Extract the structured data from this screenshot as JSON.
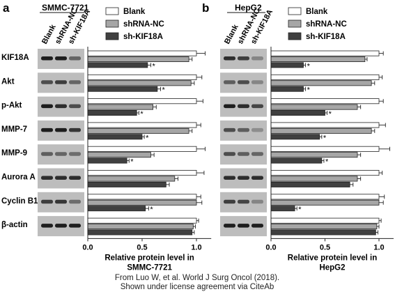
{
  "figure": {
    "caption_line1": "From Luo W, et al. World J Surg Oncol (2018).",
    "caption_line2": "Shown under license agreement via CiteAb"
  },
  "legend": {
    "entries": [
      {
        "label": "Blank",
        "color": "#ffffff"
      },
      {
        "label": "shRNA-NC",
        "color": "#a6a6a6"
      },
      {
        "label": "sh-KIF18A",
        "color": "#404040"
      }
    ]
  },
  "lane_labels": [
    "Blank",
    "shRNA-NC",
    "sh-KIF18A"
  ],
  "protein_labels": [
    "KIF18A",
    "Akt",
    "p-Akt",
    "MMP-7",
    "MMP-9",
    "Aurora A",
    "Cyclin B1",
    "β-actin"
  ],
  "colors": {
    "blank": "#ffffff",
    "nc": "#a6a6a6",
    "kd": "#404040",
    "blot_bg": "#bdbdbd",
    "band": "#1e1e1e"
  },
  "chart_data": [
    {
      "type": "bar",
      "orientation": "horizontal",
      "panel_letter": "a",
      "cell_line": "SMMC-7721",
      "xlabel_line1": "Relative protein level in",
      "xlabel_line2": "SMMC-7721",
      "xlim": [
        0,
        1.2
      ],
      "xticks": [
        "0.0",
        "0.5",
        "1.0"
      ],
      "categories": [
        "KIF18A",
        "Akt",
        "p-Akt",
        "MMP-7",
        "MMP-9",
        "Aurora A",
        "Cyclin B1",
        "β-actin"
      ],
      "series": [
        {
          "name": "Blank",
          "values": [
            1.0,
            1.0,
            1.0,
            1.0,
            1.0,
            1.0,
            1.0,
            1.0
          ],
          "errors": [
            0.08,
            0.05,
            0.06,
            0.04,
            0.08,
            0.07,
            0.04,
            0.02
          ]
        },
        {
          "name": "shRNA-NC",
          "values": [
            0.93,
            0.95,
            0.6,
            0.93,
            0.58,
            0.8,
            1.0,
            0.97
          ],
          "errors": [
            0.03,
            0.03,
            0.03,
            0.03,
            0.03,
            0.03,
            0.05,
            0.02
          ]
        },
        {
          "name": "sh-KIF18A",
          "values": [
            0.55,
            0.64,
            0.45,
            0.5,
            0.36,
            0.72,
            0.53,
            0.96
          ],
          "errors": [
            0.03,
            0.03,
            0.02,
            0.02,
            0.02,
            0.03,
            0.03,
            0.02
          ]
        }
      ],
      "significance": [
        "*",
        "*",
        "*",
        "*",
        "*",
        "",
        "*",
        ""
      ]
    },
    {
      "type": "bar",
      "orientation": "horizontal",
      "panel_letter": "b",
      "cell_line": "HepG2",
      "xlabel_line1": "Relative protein level in",
      "xlabel_line2": "HepG2",
      "xlim": [
        0,
        1.2
      ],
      "xticks": [
        "0.0",
        "0.5",
        "1.0"
      ],
      "categories": [
        "KIF18A",
        "Akt",
        "p-Akt",
        "MMP-7",
        "MMP-9",
        "Aurora A",
        "Cyclin B1",
        "β-actin"
      ],
      "series": [
        {
          "name": "Blank",
          "values": [
            1.0,
            1.0,
            1.0,
            1.0,
            1.0,
            1.0,
            1.0,
            1.0
          ],
          "errors": [
            0.04,
            0.03,
            0.04,
            0.06,
            0.1,
            0.03,
            0.05,
            0.02
          ]
        },
        {
          "name": "shRNA-NC",
          "values": [
            0.87,
            0.93,
            0.8,
            0.93,
            0.8,
            0.8,
            1.0,
            0.98
          ],
          "errors": [
            0.02,
            0.03,
            0.03,
            0.03,
            0.03,
            0.03,
            0.04,
            0.02
          ]
        },
        {
          "name": "sh-KIF18A",
          "values": [
            0.3,
            0.3,
            0.5,
            0.45,
            0.47,
            0.73,
            0.22,
            0.97
          ],
          "errors": [
            0.02,
            0.02,
            0.02,
            0.02,
            0.02,
            0.03,
            0.02,
            0.02
          ]
        }
      ],
      "significance": [
        "*",
        "*",
        "*",
        "*",
        "*",
        "",
        "*",
        ""
      ]
    }
  ]
}
